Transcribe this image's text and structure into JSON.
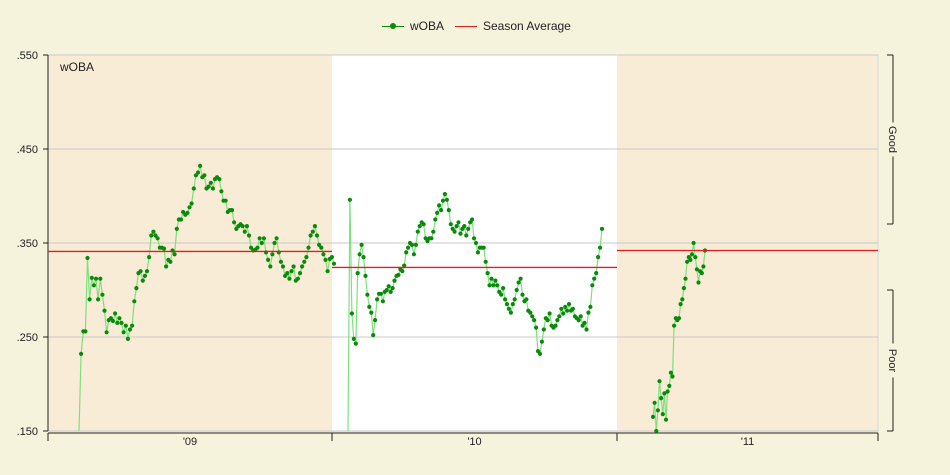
{
  "chart_data": {
    "type": "line",
    "title": "",
    "inner_label": "wOBA",
    "ylim": [
      0.15,
      0.55
    ],
    "yticks": [
      ".550",
      ".450",
      ".350",
      ".250",
      ".150"
    ],
    "ytick_values": [
      0.55,
      0.45,
      0.35,
      0.25,
      0.15
    ],
    "seasons": [
      {
        "label": "'09",
        "average": 0.341
      },
      {
        "label": "'10",
        "average": 0.324
      },
      {
        "label": "'11",
        "average": 0.342
      }
    ],
    "right_labels": [
      "Good",
      "Poor"
    ],
    "legend": [
      "wOBA",
      "Season Average"
    ],
    "colors": {
      "woba_point": "#0a8a0a",
      "woba_line": "#7de07d",
      "average": "#e02020",
      "shade": "#f8ecd6",
      "plot_bg": "#ffffff",
      "grid": "#c8c8c8"
    },
    "series": [
      {
        "name": "wOBA",
        "season": "'09",
        "values": [
          0.15,
          0.232,
          0.256,
          0.256,
          0.334,
          0.29,
          0.313,
          0.305,
          0.312,
          0.29,
          0.312,
          0.295,
          0.278,
          0.255,
          0.268,
          0.27,
          0.267,
          0.275,
          0.265,
          0.27,
          0.265,
          0.255,
          0.262,
          0.248,
          0.258,
          0.262,
          0.288,
          0.302,
          0.318,
          0.32,
          0.31,
          0.315,
          0.32,
          0.335,
          0.358,
          0.362,
          0.358,
          0.355,
          0.345,
          0.345,
          0.344,
          0.325,
          0.332,
          0.33,
          0.342,
          0.338,
          0.365,
          0.375,
          0.375,
          0.383,
          0.38,
          0.382,
          0.388,
          0.392,
          0.408,
          0.422,
          0.425,
          0.432,
          0.42,
          0.422,
          0.408,
          0.41,
          0.414,
          0.408,
          0.418,
          0.42,
          0.418,
          0.405,
          0.395,
          0.395,
          0.383,
          0.385,
          0.385,
          0.372,
          0.365,
          0.368,
          0.37,
          0.368,
          0.362,
          0.368,
          0.358,
          0.345,
          0.342,
          0.343,
          0.345,
          0.355,
          0.35,
          0.355,
          0.34,
          0.332,
          0.325,
          0.338,
          0.35,
          0.355,
          0.34,
          0.33,
          0.325,
          0.315,
          0.318,
          0.312,
          0.32,
          0.325,
          0.31,
          0.312,
          0.318,
          0.325,
          0.33,
          0.335,
          0.345,
          0.358,
          0.362,
          0.368,
          0.358,
          0.348,
          0.345,
          0.338,
          0.332,
          0.32,
          0.333,
          0.335,
          0.328
        ]
      },
      {
        "name": "wOBA",
        "season": "'10",
        "values": [
          0.15,
          0.396,
          0.275,
          0.248,
          0.243,
          0.318,
          0.338,
          0.348,
          0.335,
          0.315,
          0.295,
          0.282,
          0.276,
          0.252,
          0.268,
          0.29,
          0.296,
          0.296,
          0.288,
          0.298,
          0.3,
          0.304,
          0.298,
          0.302,
          0.31,
          0.315,
          0.316,
          0.322,
          0.32,
          0.326,
          0.34,
          0.345,
          0.35,
          0.348,
          0.338,
          0.348,
          0.362,
          0.368,
          0.372,
          0.37,
          0.355,
          0.352,
          0.355,
          0.355,
          0.362,
          0.375,
          0.382,
          0.39,
          0.385,
          0.395,
          0.402,
          0.396,
          0.385,
          0.37,
          0.365,
          0.362,
          0.368,
          0.372,
          0.36,
          0.365,
          0.368,
          0.358,
          0.365,
          0.372,
          0.375,
          0.355,
          0.35,
          0.34,
          0.345,
          0.345,
          0.345,
          0.33,
          0.318,
          0.305,
          0.312,
          0.305,
          0.31,
          0.305,
          0.298,
          0.295,
          0.302,
          0.29,
          0.285,
          0.28,
          0.276,
          0.285,
          0.29,
          0.3,
          0.308,
          0.312,
          0.295,
          0.288,
          0.29,
          0.278,
          0.276,
          0.272,
          0.268,
          0.26,
          0.235,
          0.232,
          0.245,
          0.258,
          0.27,
          0.268,
          0.275,
          0.262,
          0.26,
          0.262,
          0.268,
          0.272,
          0.28,
          0.275,
          0.282,
          0.278,
          0.285,
          0.278,
          0.28,
          0.272,
          0.27,
          0.268,
          0.272,
          0.262,
          0.265,
          0.258,
          0.276,
          0.282,
          0.305,
          0.312,
          0.318,
          0.335,
          0.345,
          0.365
        ]
      },
      {
        "name": "wOBA",
        "season": "'11",
        "values": [
          0.165,
          0.18,
          0.15,
          0.172,
          0.203,
          0.185,
          0.168,
          0.19,
          0.162,
          0.192,
          0.198,
          0.212,
          0.208,
          0.262,
          0.27,
          0.268,
          0.27,
          0.285,
          0.29,
          0.302,
          0.312,
          0.33,
          0.335,
          0.332,
          0.338,
          0.35,
          0.335,
          0.322,
          0.308,
          0.32,
          0.318,
          0.325,
          0.342
        ]
      }
    ]
  }
}
